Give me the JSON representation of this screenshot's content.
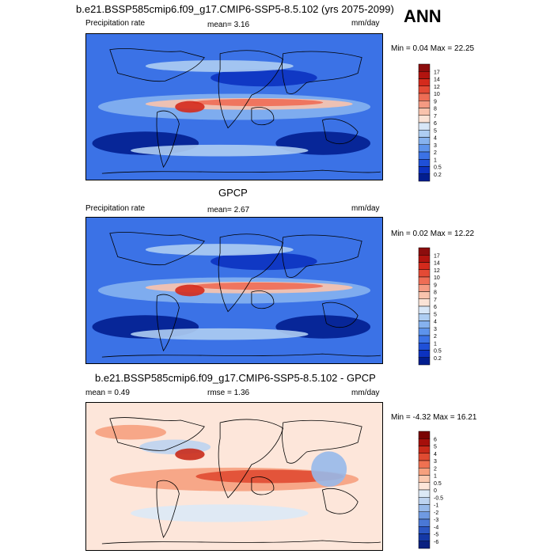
{
  "header": {
    "title": "b.e21.BSSP585cmip6.f09_g17.CMIP6-SSP5-8.5.102 (yrs 2075-2099)",
    "season": "ANN"
  },
  "chart_data": [
    {
      "type": "heatmap",
      "title": "b.e21.BSSP585cmip6.f09_g17.CMIP6-SSP5-8.5.102 (yrs 2075-2099)",
      "left_label": "Precipitation rate",
      "center_label": "mean=  3.16",
      "units": "mm/day",
      "minmax": "Min =  0.04 Max =  22.25",
      "colorbar_levels": [
        "17",
        "14",
        "12",
        "10",
        "9",
        "8",
        "7",
        "6",
        "5",
        "4",
        "3",
        "2",
        "1",
        "0.5",
        "0.2"
      ],
      "colorbar_colors": [
        "#8c0d0d",
        "#b2140f",
        "#d42a1c",
        "#e44a35",
        "#ee6d55",
        "#f59a82",
        "#f9c3ad",
        "#fbe3d6",
        "#d7e6f7",
        "#aecdf2",
        "#86b2ef",
        "#5d93ec",
        "#3b72e6",
        "#1f50d8",
        "#0c32c0",
        "#021e8f"
      ]
    },
    {
      "type": "heatmap",
      "title": "GPCP",
      "left_label": "Precipitation rate",
      "center_label": "mean=  2.67",
      "units": "mm/day",
      "minmax": "Min =  0.02 Max =  12.22",
      "colorbar_levels": [
        "17",
        "14",
        "12",
        "10",
        "9",
        "8",
        "7",
        "6",
        "5",
        "4",
        "3",
        "2",
        "1",
        "0.5",
        "0.2"
      ],
      "colorbar_colors": [
        "#8c0d0d",
        "#b2140f",
        "#d42a1c",
        "#e44a35",
        "#ee6d55",
        "#f59a82",
        "#f9c3ad",
        "#fbe3d6",
        "#d7e6f7",
        "#aecdf2",
        "#86b2ef",
        "#5d93ec",
        "#3b72e6",
        "#1f50d8",
        "#0c32c0",
        "#021e8f"
      ]
    },
    {
      "type": "heatmap",
      "title": "b.e21.BSSP585cmip6.f09_g17.CMIP6-SSP5-8.5.102 - GPCP",
      "left_label": "mean =   0.49",
      "center_label": "rmse =   1.36",
      "units": "mm/day",
      "minmax": "Min =  -4.32 Max =  16.21",
      "colorbar_levels": [
        "6",
        "5",
        "4",
        "3",
        "2",
        "1",
        "0.5",
        "0",
        "-0.5",
        "-1",
        "-2",
        "-3",
        "-4",
        "-5",
        "-6"
      ],
      "colorbar_colors": [
        "#7a0403",
        "#a50f0b",
        "#c92a1a",
        "#e04b32",
        "#ef7151",
        "#f6a07e",
        "#fbc9b0",
        "#fde6da",
        "#dce9f6",
        "#bdd3f0",
        "#97b9ea",
        "#6f9ae2",
        "#4a78d6",
        "#2b56c3",
        "#1438a6",
        "#0a2180"
      ]
    }
  ]
}
